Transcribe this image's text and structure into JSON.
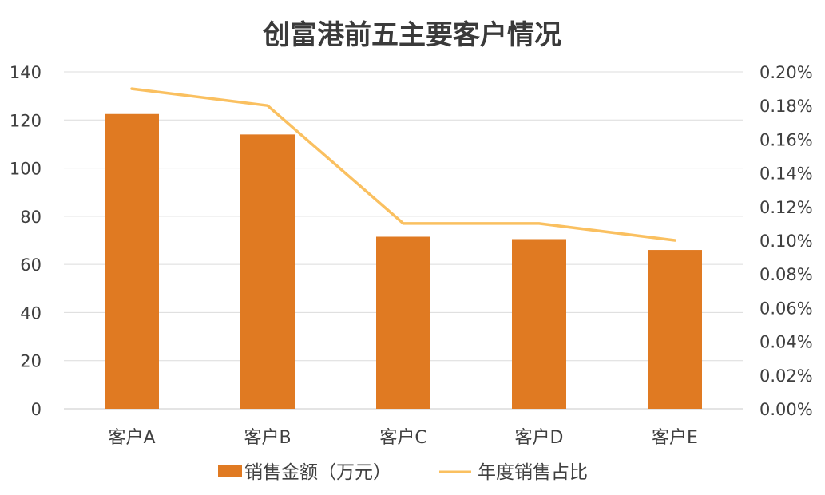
{
  "chart_data": {
    "type": "bar",
    "title": "创富港前五主要客户情况",
    "categories": [
      "客户A",
      "客户B",
      "客户C",
      "客户D",
      "客户E"
    ],
    "series": [
      {
        "name": "销售金额（万元）",
        "type": "bar",
        "axis": "left",
        "color": "#E07A22",
        "values": [
          122.5,
          114,
          71.5,
          70.5,
          66
        ]
      },
      {
        "name": "年度销售占比",
        "type": "line",
        "axis": "right",
        "color": "#FAC060",
        "values": [
          0.0019,
          0.0018,
          0.0011,
          0.0011,
          0.001
        ]
      }
    ],
    "y_left": {
      "min": 0,
      "max": 140,
      "ticks": [
        "0",
        "20",
        "40",
        "60",
        "80",
        "100",
        "120",
        "140"
      ]
    },
    "y_right": {
      "min": 0,
      "max": 0.002,
      "ticks": [
        "0.00%",
        "0.02%",
        "0.04%",
        "0.06%",
        "0.08%",
        "0.10%",
        "0.12%",
        "0.14%",
        "0.16%",
        "0.18%",
        "0.20%"
      ]
    },
    "grid": true,
    "legend": "bottom"
  }
}
